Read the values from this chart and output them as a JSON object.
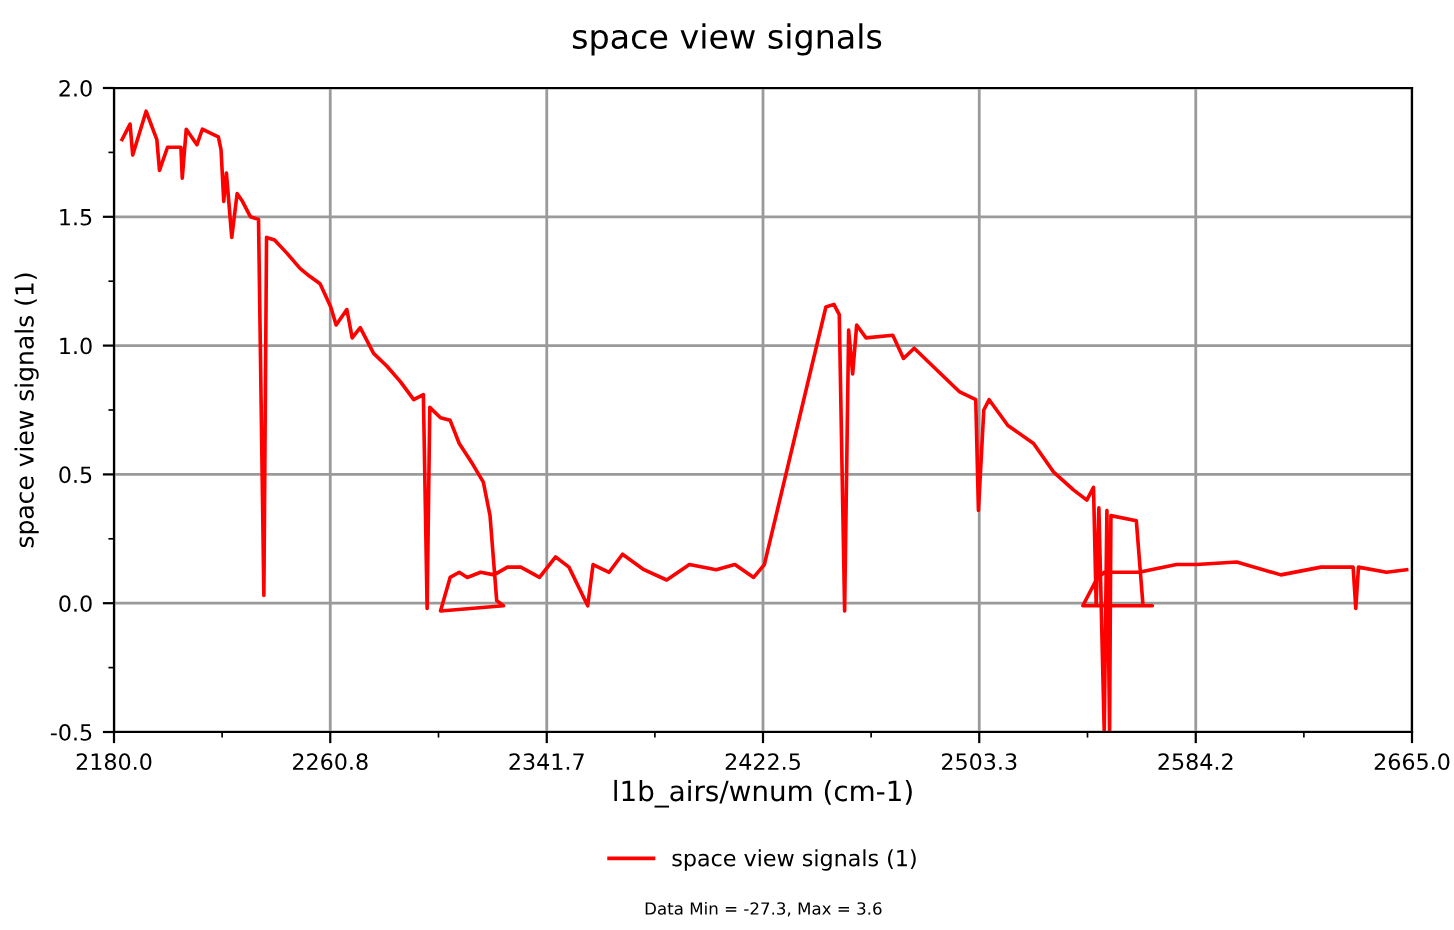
{
  "chart_data": {
    "type": "line",
    "title": "space view signals",
    "xlabel": "l1b_airs/wnum (cm-1)",
    "ylabel": "space view signals (1)",
    "annotations": [
      "Data Min = -27.3, Max = 3.6"
    ],
    "xlim": [
      2180.0,
      2665.0
    ],
    "ylim": [
      -0.5,
      2.0
    ],
    "xticks": [
      {
        "value": 2180.0,
        "label": "2180.0"
      },
      {
        "value": 2260.8,
        "label": "2260.8"
      },
      {
        "value": 2341.7,
        "label": "2341.7"
      },
      {
        "value": 2422.5,
        "label": "2422.5"
      },
      {
        "value": 2503.3,
        "label": "2503.3"
      },
      {
        "value": 2584.2,
        "label": "2584.2"
      },
      {
        "value": 2665.0,
        "label": "2665.0"
      }
    ],
    "yticks": [
      {
        "value": -0.5,
        "label": "-0.5"
      },
      {
        "value": 0.0,
        "label": "0.0"
      },
      {
        "value": 0.5,
        "label": "0.5"
      },
      {
        "value": 1.0,
        "label": "1.0"
      },
      {
        "value": 1.5,
        "label": "1.5"
      },
      {
        "value": 2.0,
        "label": "2.0"
      }
    ],
    "grid": true,
    "legend": "bottom",
    "marker": "none",
    "line_style": "solid",
    "series": [
      {
        "name": "space view signals (1)",
        "color": "#ff0000",
        "x": [
          2183,
          2186,
          2187,
          2192,
          2196,
          2197,
          2200,
          2205,
          2205.5,
          2207,
          2211,
          2213,
          2217,
          2219,
          2220,
          2221,
          2222,
          2224,
          2226,
          2228,
          2231,
          2234,
          2236,
          2237,
          2240,
          2244.5,
          2249.5,
          2253,
          2257,
          2261,
          2263,
          2267,
          2269,
          2272,
          2277,
          2282,
          2287,
          2292,
          2295.6,
          2297,
          2298,
          2302,
          2305.6,
          2309,
          2314,
          2318,
          2320.5,
          2323,
          2325.5,
          2302,
          2305.6,
          2309,
          2312,
          2317,
          2322,
          2327,
          2332,
          2339,
          2345,
          2350,
          2357,
          2359,
          2365,
          2370,
          2378,
          2386.5,
          2395,
          2405,
          2412,
          2419,
          2423,
          2446,
          2449,
          2451,
          2453,
          2454.5,
          2456,
          2457.5,
          2461,
          2471,
          2475,
          2479,
          2489,
          2496,
          2502,
          2503,
          2505,
          2507,
          2514,
          2523.6,
          2531,
          2538.5,
          2543.5,
          2546,
          2547,
          2548,
          2550,
          2551,
          2552,
          2552.5,
          2562,
          2564.5,
          2568,
          2542,
          2547,
          2550,
          2563,
          2577,
          2584.5,
          2599.5,
          2616,
          2631,
          2643,
          2644,
          2645,
          2655.5,
          2663
        ],
        "values": [
          1.8,
          1.86,
          1.74,
          1.91,
          1.8,
          1.68,
          1.77,
          1.77,
          1.65,
          1.84,
          1.78,
          1.84,
          1.82,
          1.81,
          1.76,
          1.56,
          1.67,
          1.42,
          1.59,
          1.56,
          1.5,
          1.49,
          0.03,
          1.42,
          1.41,
          1.36,
          1.3,
          1.27,
          1.24,
          1.15,
          1.08,
          1.14,
          1.03,
          1.07,
          0.97,
          0.92,
          0.86,
          0.79,
          0.81,
          -0.02,
          0.76,
          0.72,
          0.71,
          0.62,
          0.54,
          0.47,
          0.34,
          0.01,
          -0.01,
          -0.03,
          0.1,
          0.12,
          0.1,
          0.12,
          0.11,
          0.14,
          0.14,
          0.1,
          0.18,
          0.14,
          -0.01,
          0.15,
          0.12,
          0.19,
          0.13,
          0.09,
          0.15,
          0.13,
          0.15,
          0.1,
          0.15,
          1.15,
          1.16,
          1.12,
          -0.03,
          1.06,
          0.89,
          1.08,
          1.03,
          1.04,
          0.95,
          0.99,
          0.89,
          0.82,
          0.79,
          0.36,
          0.75,
          0.79,
          0.69,
          0.62,
          0.51,
          0.44,
          0.4,
          0.45,
          -0.01,
          0.37,
          -0.5,
          0.36,
          -0.5,
          0.34,
          0.32,
          -0.01,
          -0.01,
          -0.01,
          0.09,
          0.12,
          0.12,
          0.15,
          0.15,
          0.16,
          0.11,
          0.14,
          0.14,
          -0.02,
          0.14,
          0.12,
          0.13
        ]
      }
    ]
  }
}
